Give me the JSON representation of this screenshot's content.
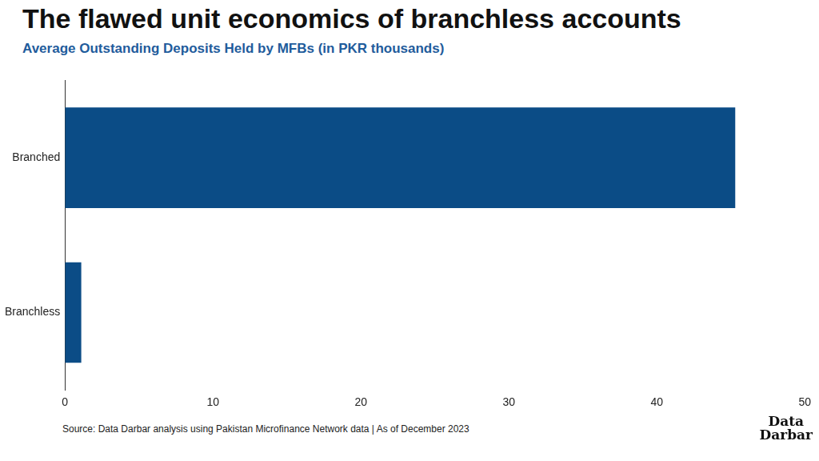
{
  "chart_data": {
    "type": "bar",
    "title": "The flawed unit economics of branchless accounts",
    "subtitle": "Average Outstanding Deposits Held by MFBs (in PKR thousands)",
    "categories": [
      "Branched",
      "Branchless"
    ],
    "values": [
      45.3,
      1.1
    ],
    "color": "#0b4c86",
    "orientation": "horizontal",
    "xlim": [
      0,
      50
    ],
    "xticks": [
      0,
      10,
      20,
      30,
      40,
      50
    ],
    "grid": false,
    "source": "Source: Data Darbar analysis using Pakistan Microfinance Network data | As of December 2023",
    "logo": "Data Darbar"
  }
}
